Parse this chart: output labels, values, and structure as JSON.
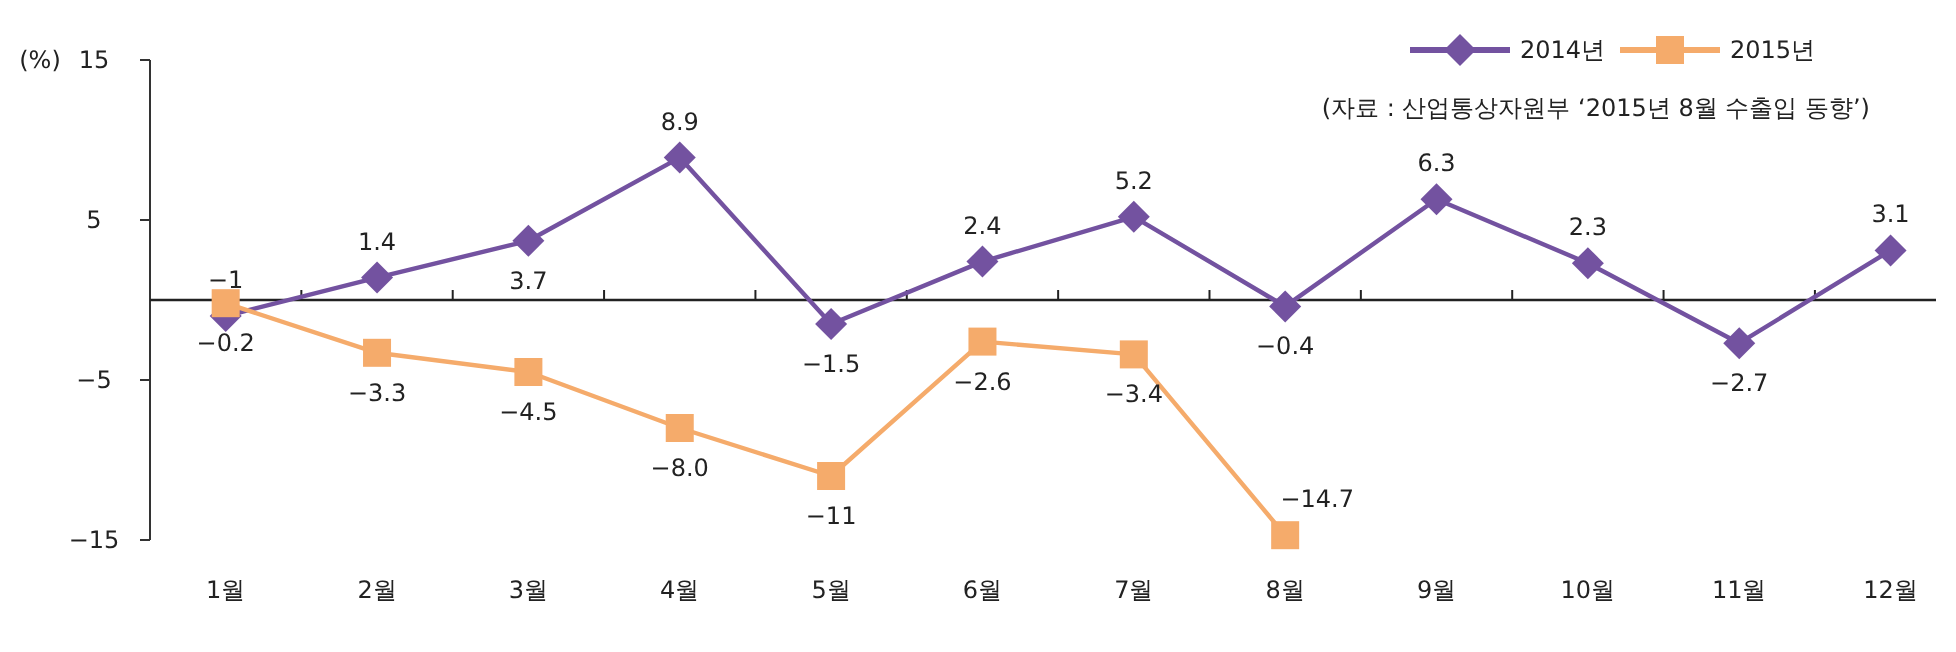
{
  "chart_data": {
    "type": "line",
    "ylabel": "(%)",
    "categories": [
      "1월",
      "2월",
      "3월",
      "4월",
      "5월",
      "6월",
      "7월",
      "8월",
      "9월",
      "10월",
      "11월",
      "12월"
    ],
    "series": [
      {
        "name": "2014년",
        "color": "#7352a0",
        "marker": "diamond",
        "values": [
          -1,
          1.4,
          3.7,
          8.9,
          -1.5,
          2.4,
          5.2,
          -0.4,
          6.3,
          2.3,
          -2.7,
          3.1
        ],
        "value_labels": [
          "−1",
          "1.4",
          "3.7",
          "8.9",
          "−1.5",
          "2.4",
          "5.2",
          "−0.4",
          "6.3",
          "2.3",
          "−2.7",
          "3.1"
        ]
      },
      {
        "name": "2015년",
        "color": "#f5ab6b",
        "marker": "square",
        "values": [
          -0.2,
          -3.3,
          -4.5,
          -8.0,
          -11,
          -2.6,
          -3.4,
          -14.7,
          null,
          null,
          null,
          null
        ],
        "value_labels": [
          "−0.2",
          "−3.3",
          "−4.5",
          "−8.0",
          "−11",
          "−2.6",
          "−3.4",
          "−14.7",
          null,
          null,
          null,
          null
        ]
      }
    ],
    "ylim": [
      -15,
      15
    ],
    "yticks": [
      15,
      5,
      {
        "value": -5,
        "label": "−5"
      },
      {
        "value": -15,
        "label": "−15"
      }
    ],
    "grid": false,
    "legend": "top right",
    "annotations": [
      "(자료 : 산업통상자원부 ‘2015년 8월 수출입 동향’)"
    ]
  }
}
